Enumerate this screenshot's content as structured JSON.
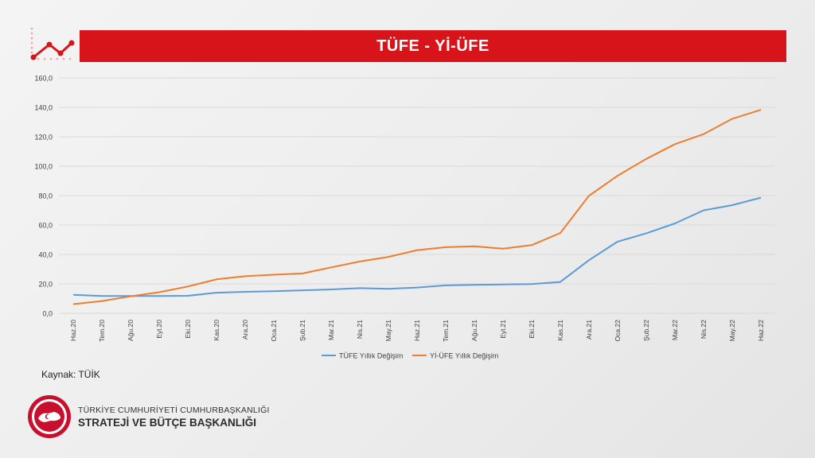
{
  "header": {
    "title": "TÜFE - Yİ-ÜFE"
  },
  "footer": {
    "source": "Kaynak: TÜİK",
    "org_line1": "TÜRKİYE CUMHURİYETİ CUMHURBAŞKANLIĞI",
    "org_line2": "STRATEJİ VE BÜTÇE BAŞKANLIĞI"
  },
  "colors": {
    "accent": "#d7141a",
    "tufe": "#5b9bd5",
    "yiufe": "#ed7d31",
    "grid": "#d9d9d9"
  },
  "icons": {
    "trend": "line-chart-trend-icon",
    "emblem": "presidency-emblem-icon"
  },
  "chart_data": {
    "type": "line",
    "categories": [
      "Haz.20",
      "Tem.20",
      "Ağu.20",
      "Eyl.20",
      "Eki.20",
      "Kas.20",
      "Ara.20",
      "Oca.21",
      "Şub.21",
      "Mar.21",
      "Nis.21",
      "May.21",
      "Haz.21",
      "Tem.21",
      "Ağu.21",
      "Eyl.21",
      "Eki.21",
      "Kas.21",
      "Ara.21",
      "Oca.22",
      "Şub.22",
      "Mar.22",
      "Nis.22",
      "May.22",
      "Haz.22"
    ],
    "series": [
      {
        "name": "TÜFE Yıllık Değişim",
        "color": "#5b9bd5",
        "values": [
          12.6,
          11.8,
          11.8,
          11.8,
          11.9,
          14.0,
          14.6,
          15.0,
          15.6,
          16.2,
          17.1,
          16.6,
          17.5,
          19.0,
          19.3,
          19.6,
          19.9,
          21.3,
          36.1,
          48.7,
          54.4,
          61.1,
          70.0,
          73.5,
          78.6
        ]
      },
      {
        "name": "Yİ-ÜFE Yıllık Değişim",
        "color": "#ed7d31",
        "values": [
          6.2,
          8.3,
          11.5,
          14.3,
          18.2,
          23.1,
          25.2,
          26.2,
          27.1,
          31.2,
          35.2,
          38.3,
          42.9,
          44.9,
          45.5,
          43.9,
          46.3,
          54.6,
          79.9,
          93.5,
          105.0,
          115.0,
          121.8,
          132.2,
          138.3
        ]
      }
    ],
    "yticks": [
      "0,0",
      "20,0",
      "40,0",
      "60,0",
      "80,0",
      "100,0",
      "120,0",
      "140,0",
      "160,0"
    ],
    "ylim": [
      0,
      160
    ],
    "grid": true,
    "legend_position": "bottom"
  }
}
